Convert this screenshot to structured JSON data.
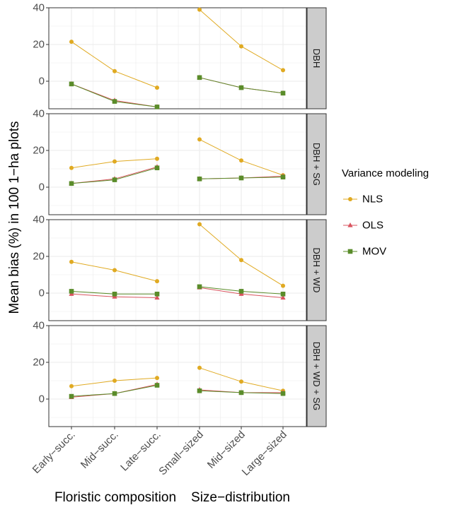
{
  "chart_data": {
    "type": "line",
    "facet_strips": [
      "DBH",
      "DBH + SG",
      "DBH + WD",
      "DBH + WD + SG"
    ],
    "categories": [
      "Early−succ.",
      "Mid−succ.",
      "Late−succ.",
      "Small−sized",
      "Mid−sized",
      "Large−sized"
    ],
    "groups": [
      "Floristic composition",
      "Size−distribution"
    ],
    "ylabel": "Mean bias (%) in 100 1−ha plots",
    "ylim": [
      -15,
      40
    ],
    "yticks": [
      "0",
      "20",
      "40"
    ],
    "grid": true,
    "legend": {
      "title": "Variance modeling",
      "position": "right",
      "entries": [
        "NLS",
        "OLS",
        "MOV"
      ]
    },
    "colors": {
      "NLS": "#e0aa22",
      "OLS": "#d9545f",
      "MOV": "#5a8c2a",
      "strip": "#cccccc",
      "grid": "#ebebeb",
      "border": "#333333"
    },
    "panels": [
      {
        "strip": "DBH",
        "series": [
          {
            "name": "NLS",
            "values": [
              21.5,
              5.5,
              -3.5,
              39,
              19,
              6
            ]
          },
          {
            "name": "OLS",
            "values": [
              -1.5,
              -10.5,
              -14,
              2,
              -3.5,
              -6.5
            ]
          },
          {
            "name": "MOV",
            "values": [
              -1.5,
              -11,
              -14,
              2,
              -3.5,
              -6.5
            ]
          }
        ]
      },
      {
        "strip": "DBH + SG",
        "series": [
          {
            "name": "NLS",
            "values": [
              10.5,
              14,
              15.5,
              26,
              14.5,
              6.5
            ]
          },
          {
            "name": "OLS",
            "values": [
              2,
              4.5,
              11,
              4.5,
              5,
              6
            ]
          },
          {
            "name": "MOV",
            "values": [
              2,
              4,
              10.5,
              4.5,
              5,
              5.5
            ]
          }
        ]
      },
      {
        "strip": "DBH + WD",
        "series": [
          {
            "name": "NLS",
            "values": [
              17,
              12.5,
              6.5,
              37.5,
              18,
              4
            ]
          },
          {
            "name": "OLS",
            "values": [
              -0.5,
              -2,
              -2.5,
              3,
              -0.5,
              -2.5
            ]
          },
          {
            "name": "MOV",
            "values": [
              1,
              -0.5,
              -0.5,
              3.5,
              1,
              -0.5
            ]
          }
        ]
      },
      {
        "strip": "DBH + WD + SG",
        "series": [
          {
            "name": "NLS",
            "values": [
              7,
              10,
              11.5,
              17,
              9.5,
              4.5
            ]
          },
          {
            "name": "OLS",
            "values": [
              1,
              3,
              8,
              5,
              3.5,
              3.5
            ]
          },
          {
            "name": "MOV",
            "values": [
              1.5,
              3,
              7.5,
              4.5,
              3.5,
              3
            ]
          }
        ]
      }
    ]
  }
}
